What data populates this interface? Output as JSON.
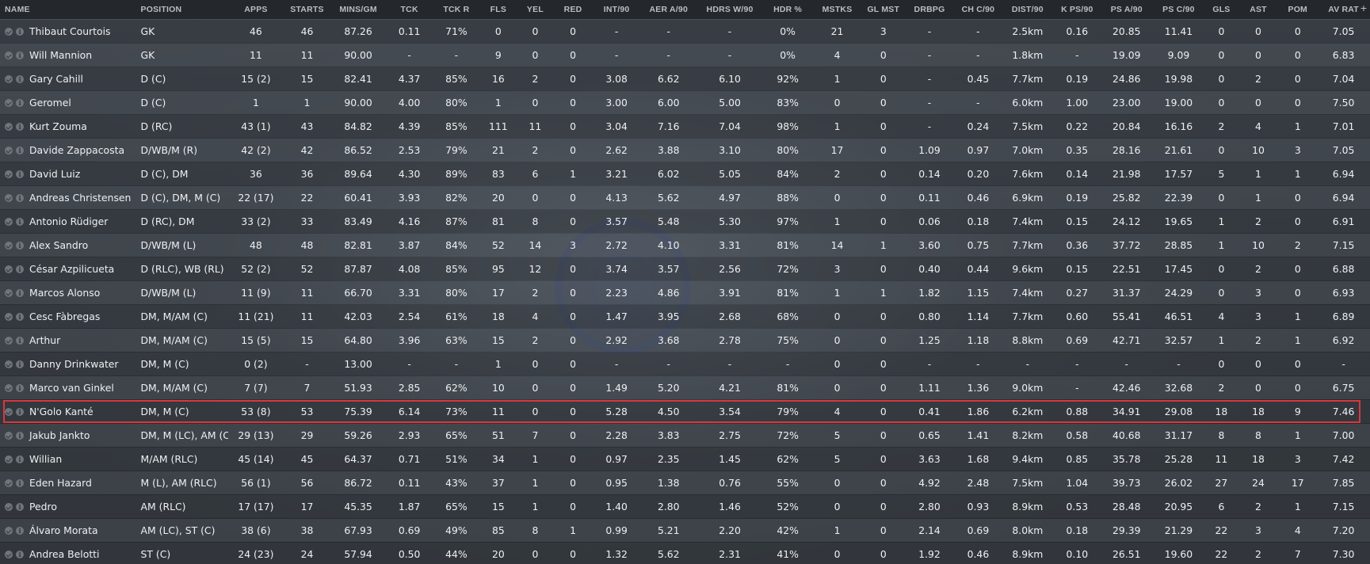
{
  "add_column_symbol": "+",
  "columns": [
    {
      "key": "name",
      "label": "NAME"
    },
    {
      "key": "position",
      "label": "POSITION"
    },
    {
      "key": "apps",
      "label": "APPS"
    },
    {
      "key": "starts",
      "label": "STARTS"
    },
    {
      "key": "mins_gm",
      "label": "MINS/GM"
    },
    {
      "key": "tck",
      "label": "TCK"
    },
    {
      "key": "tck_r",
      "label": "TCK R"
    },
    {
      "key": "fls",
      "label": "FLS"
    },
    {
      "key": "yel",
      "label": "YEL"
    },
    {
      "key": "red",
      "label": "RED"
    },
    {
      "key": "int90",
      "label": "INT/90"
    },
    {
      "key": "aer_a90",
      "label": "AER A/90"
    },
    {
      "key": "hdrs_w90",
      "label": "HDRS W/90"
    },
    {
      "key": "hdr_pct",
      "label": "HDR %"
    },
    {
      "key": "mstks",
      "label": "MSTKS"
    },
    {
      "key": "gl_mst",
      "label": "GL MST"
    },
    {
      "key": "drbpg",
      "label": "DRBPG"
    },
    {
      "key": "ch_c90",
      "label": "CH C/90"
    },
    {
      "key": "dist90",
      "label": "DIST/90"
    },
    {
      "key": "k_ps90",
      "label": "K PS/90"
    },
    {
      "key": "ps_a90",
      "label": "PS A/90"
    },
    {
      "key": "ps_c90",
      "label": "PS C/90"
    },
    {
      "key": "gls",
      "label": "GLS"
    },
    {
      "key": "ast",
      "label": "AST"
    },
    {
      "key": "pom",
      "label": "POM"
    },
    {
      "key": "av_rat",
      "label": "AV RAT"
    }
  ],
  "sorted_column": "position",
  "sort_symbol": "▲",
  "selected_player": "N'Golo Kanté",
  "players": [
    [
      "Thibaut Courtois",
      "GK",
      "46",
      "46",
      "87.26",
      "0.11",
      "71%",
      "0",
      "0",
      "0",
      "-",
      "-",
      "-",
      "0%",
      "21",
      "3",
      "-",
      "-",
      "2.5km",
      "0.16",
      "20.85",
      "11.41",
      "0",
      "0",
      "0",
      "7.05"
    ],
    [
      "Will Mannion",
      "GK",
      "11",
      "11",
      "90.00",
      "-",
      "-",
      "9",
      "0",
      "0",
      "-",
      "-",
      "-",
      "0%",
      "4",
      "0",
      "-",
      "-",
      "1.8km",
      "-",
      "19.09",
      "9.09",
      "0",
      "0",
      "0",
      "6.83"
    ],
    [
      "Gary Cahill",
      "D (C)",
      "15 (2)",
      "15",
      "82.41",
      "4.37",
      "85%",
      "16",
      "2",
      "0",
      "3.08",
      "6.62",
      "6.10",
      "92%",
      "1",
      "0",
      "-",
      "0.45",
      "7.7km",
      "0.19",
      "24.86",
      "19.98",
      "0",
      "2",
      "0",
      "7.04"
    ],
    [
      "Geromel",
      "D (C)",
      "1",
      "1",
      "90.00",
      "4.00",
      "80%",
      "1",
      "0",
      "0",
      "3.00",
      "6.00",
      "5.00",
      "83%",
      "0",
      "0",
      "-",
      "-",
      "6.0km",
      "1.00",
      "23.00",
      "19.00",
      "0",
      "0",
      "0",
      "7.50"
    ],
    [
      "Kurt Zouma",
      "D (RC)",
      "43 (1)",
      "43",
      "84.82",
      "4.39",
      "85%",
      "111",
      "11",
      "0",
      "3.04",
      "7.16",
      "7.04",
      "98%",
      "1",
      "0",
      "-",
      "0.24",
      "7.5km",
      "0.22",
      "20.84",
      "16.16",
      "2",
      "4",
      "1",
      "7.01"
    ],
    [
      "Davide Zappacosta",
      "D/WB/M (R)",
      "42 (2)",
      "42",
      "86.52",
      "2.53",
      "79%",
      "21",
      "2",
      "0",
      "2.62",
      "3.88",
      "3.10",
      "80%",
      "17",
      "0",
      "1.09",
      "0.97",
      "7.0km",
      "0.35",
      "28.16",
      "21.61",
      "0",
      "10",
      "3",
      "7.05"
    ],
    [
      "David Luiz",
      "D (C), DM",
      "36",
      "36",
      "89.64",
      "4.30",
      "89%",
      "83",
      "6",
      "1",
      "3.21",
      "6.02",
      "5.05",
      "84%",
      "2",
      "0",
      "0.14",
      "0.20",
      "7.6km",
      "0.14",
      "21.98",
      "17.57",
      "5",
      "1",
      "1",
      "6.94"
    ],
    [
      "Andreas Christensen",
      "D (C), DM, M (C)",
      "22 (17)",
      "22",
      "60.41",
      "3.93",
      "82%",
      "20",
      "0",
      "0",
      "4.13",
      "5.62",
      "4.97",
      "88%",
      "0",
      "0",
      "0.11",
      "0.46",
      "6.9km",
      "0.19",
      "25.82",
      "22.39",
      "0",
      "1",
      "0",
      "6.94"
    ],
    [
      "Antonio Rüdiger",
      "D (RC), DM",
      "33 (2)",
      "33",
      "83.49",
      "4.16",
      "87%",
      "81",
      "8",
      "0",
      "3.57",
      "5.48",
      "5.30",
      "97%",
      "1",
      "0",
      "0.06",
      "0.18",
      "7.4km",
      "0.15",
      "24.12",
      "19.65",
      "1",
      "2",
      "0",
      "6.91"
    ],
    [
      "Alex Sandro",
      "D/WB/M (L)",
      "48",
      "48",
      "82.81",
      "3.87",
      "84%",
      "52",
      "14",
      "3",
      "2.72",
      "4.10",
      "3.31",
      "81%",
      "14",
      "1",
      "3.60",
      "0.75",
      "7.7km",
      "0.36",
      "37.72",
      "28.85",
      "1",
      "10",
      "2",
      "7.15"
    ],
    [
      "César Azpilicueta",
      "D (RLC), WB (RL)",
      "52 (2)",
      "52",
      "87.87",
      "4.08",
      "85%",
      "95",
      "12",
      "0",
      "3.74",
      "3.57",
      "2.56",
      "72%",
      "3",
      "0",
      "0.40",
      "0.44",
      "9.6km",
      "0.15",
      "22.51",
      "17.45",
      "0",
      "2",
      "0",
      "6.88"
    ],
    [
      "Marcos Alonso",
      "D/WB/M (L)",
      "11 (9)",
      "11",
      "66.70",
      "3.31",
      "80%",
      "17",
      "2",
      "0",
      "2.23",
      "4.86",
      "3.91",
      "81%",
      "1",
      "1",
      "1.82",
      "1.15",
      "7.4km",
      "0.27",
      "31.37",
      "24.29",
      "0",
      "3",
      "0",
      "6.93"
    ],
    [
      "Cesc Fàbregas",
      "DM, M/AM (C)",
      "11 (21)",
      "11",
      "42.03",
      "2.54",
      "61%",
      "18",
      "4",
      "0",
      "1.47",
      "3.95",
      "2.68",
      "68%",
      "0",
      "0",
      "0.80",
      "1.14",
      "7.7km",
      "0.60",
      "55.41",
      "46.51",
      "4",
      "3",
      "1",
      "6.89"
    ],
    [
      "Arthur",
      "DM, M/AM (C)",
      "15 (5)",
      "15",
      "64.80",
      "3.96",
      "63%",
      "15",
      "2",
      "0",
      "2.92",
      "3.68",
      "2.78",
      "75%",
      "0",
      "0",
      "1.25",
      "1.18",
      "8.8km",
      "0.69",
      "42.71",
      "32.57",
      "1",
      "2",
      "1",
      "6.92"
    ],
    [
      "Danny Drinkwater",
      "DM, M (C)",
      "0 (2)",
      "-",
      "13.00",
      "-",
      "-",
      "1",
      "0",
      "0",
      "-",
      "-",
      "-",
      "-",
      "0",
      "0",
      "-",
      "-",
      "-",
      "-",
      "-",
      "-",
      "0",
      "0",
      "0",
      "-"
    ],
    [
      "Marco van Ginkel",
      "DM, M/AM (C)",
      "7 (7)",
      "7",
      "51.93",
      "2.85",
      "62%",
      "10",
      "0",
      "0",
      "1.49",
      "5.20",
      "4.21",
      "81%",
      "0",
      "0",
      "1.11",
      "1.36",
      "9.0km",
      "-",
      "42.46",
      "32.68",
      "2",
      "0",
      "0",
      "6.75"
    ],
    [
      "N'Golo Kanté",
      "DM, M (C)",
      "53 (8)",
      "53",
      "75.39",
      "6.14",
      "73%",
      "11",
      "0",
      "0",
      "5.28",
      "4.50",
      "3.54",
      "79%",
      "4",
      "0",
      "0.41",
      "1.86",
      "6.2km",
      "0.88",
      "34.91",
      "29.08",
      "18",
      "18",
      "9",
      "7.46"
    ],
    [
      "Jakub Jankto",
      "DM, M (LC), AM (C)",
      "29 (13)",
      "29",
      "59.26",
      "2.93",
      "65%",
      "51",
      "7",
      "0",
      "2.28",
      "3.83",
      "2.75",
      "72%",
      "5",
      "0",
      "0.65",
      "1.41",
      "8.2km",
      "0.58",
      "40.68",
      "31.17",
      "8",
      "8",
      "1",
      "7.00"
    ],
    [
      "Willian",
      "M/AM (RLC)",
      "45 (14)",
      "45",
      "64.37",
      "0.71",
      "51%",
      "34",
      "1",
      "0",
      "0.97",
      "2.35",
      "1.45",
      "62%",
      "5",
      "0",
      "3.63",
      "1.68",
      "9.4km",
      "0.85",
      "35.78",
      "25.28",
      "11",
      "18",
      "3",
      "7.42"
    ],
    [
      "Eden Hazard",
      "M (L), AM (RLC)",
      "56 (1)",
      "56",
      "86.72",
      "0.11",
      "43%",
      "37",
      "1",
      "0",
      "0.95",
      "1.38",
      "0.76",
      "55%",
      "0",
      "0",
      "4.92",
      "2.48",
      "7.5km",
      "1.04",
      "39.73",
      "26.02",
      "27",
      "24",
      "17",
      "7.85"
    ],
    [
      "Pedro",
      "AM (RLC)",
      "17 (17)",
      "17",
      "45.35",
      "1.87",
      "65%",
      "15",
      "1",
      "0",
      "1.40",
      "2.80",
      "1.46",
      "52%",
      "0",
      "0",
      "2.80",
      "0.93",
      "8.9km",
      "0.53",
      "28.48",
      "20.95",
      "6",
      "2",
      "1",
      "7.15"
    ],
    [
      "Álvaro Morata",
      "AM (LC), ST (C)",
      "38 (6)",
      "38",
      "67.93",
      "0.69",
      "49%",
      "85",
      "8",
      "1",
      "0.99",
      "5.21",
      "2.20",
      "42%",
      "1",
      "0",
      "2.14",
      "0.69",
      "8.0km",
      "0.18",
      "29.39",
      "21.29",
      "22",
      "3",
      "4",
      "7.20"
    ],
    [
      "Andrea Belotti",
      "ST (C)",
      "24 (23)",
      "24",
      "57.94",
      "0.50",
      "44%",
      "20",
      "0",
      "0",
      "1.32",
      "5.62",
      "2.31",
      "41%",
      "0",
      "0",
      "1.92",
      "0.46",
      "8.9km",
      "0.10",
      "26.51",
      "19.60",
      "22",
      "2",
      "7",
      "7.30"
    ]
  ],
  "colors": {
    "highlight_border": "#d9373d",
    "header_text": "#b9bec4",
    "row_text": "#eef0f2"
  }
}
